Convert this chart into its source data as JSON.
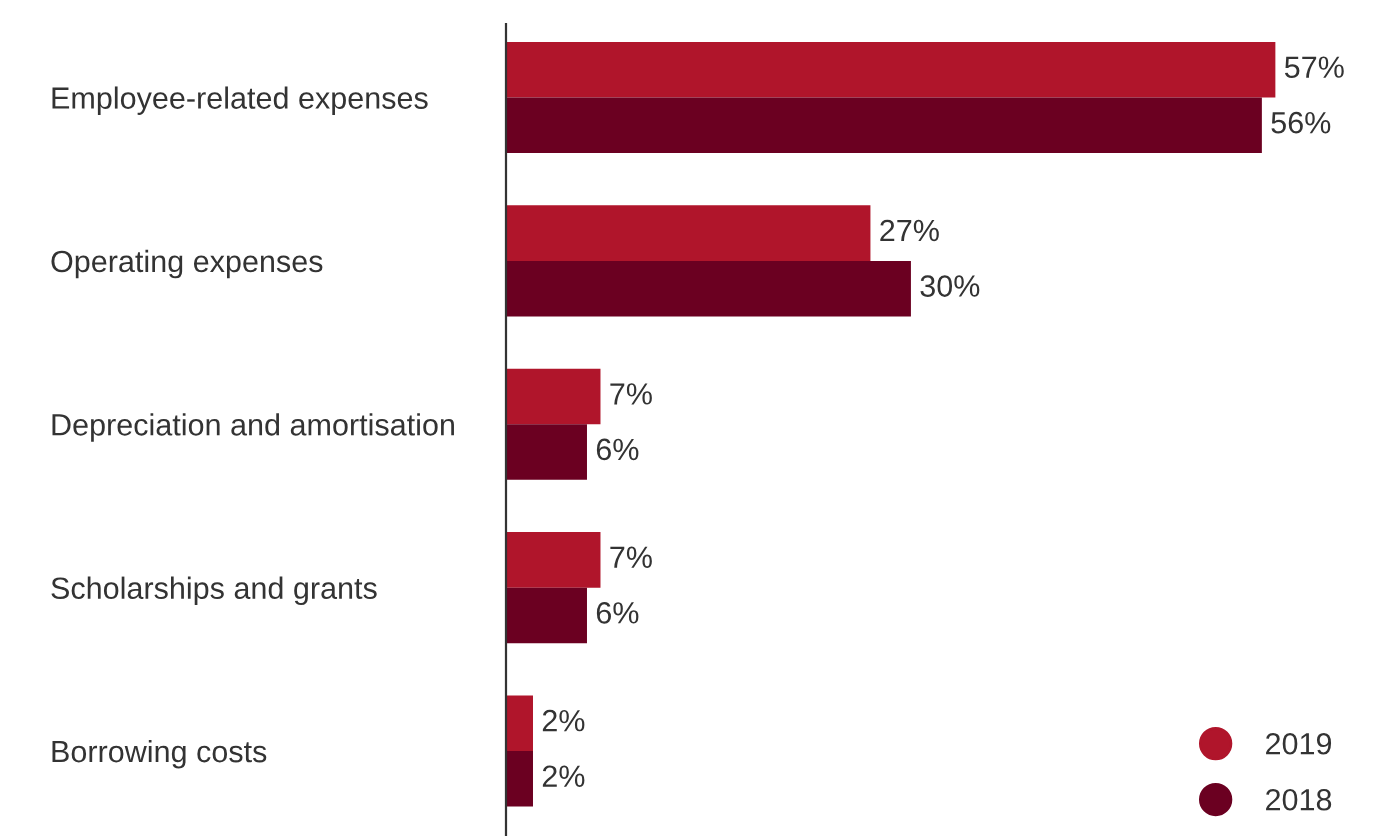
{
  "chart_data": {
    "type": "bar",
    "orientation": "horizontal",
    "categories": [
      "Employee-related expenses",
      "Operating expenses",
      "Depreciation and amortisation",
      "Scholarships and grants",
      "Borrowing costs"
    ],
    "series": [
      {
        "name": "2019",
        "color": "#b0152b",
        "values": [
          57,
          27,
          7,
          7,
          2
        ],
        "value_labels": [
          "57%",
          "27%",
          "7%",
          "7%",
          "2%"
        ]
      },
      {
        "name": "2018",
        "color": "#6b0021",
        "values": [
          56,
          30,
          6,
          6,
          2
        ],
        "value_labels": [
          "56%",
          "30%",
          "6%",
          "6%",
          "2%"
        ]
      }
    ],
    "legend": "bottom right",
    "grid": false
  }
}
